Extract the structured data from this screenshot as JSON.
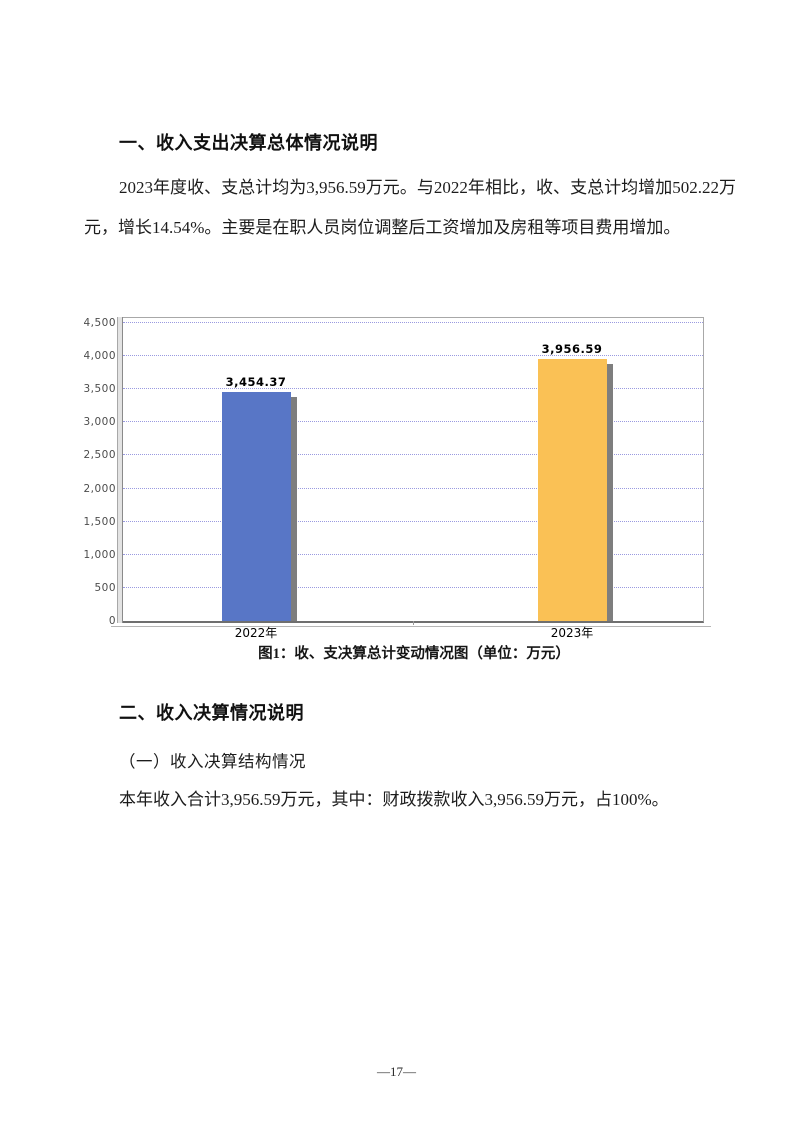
{
  "document": {
    "section1_heading": "一、收入支出决算总体情况说明",
    "paragraph1": "2023年度收、支总计均为3,956.59万元。与2022年相比，收、支总计均增加502.22万元，增长14.54%。主要是在职人员岗位调整后工资增加及房租等项目费用增加。",
    "section2_heading": "二、收入决算情况说明",
    "subsection_heading": "（一）收入决算结构情况",
    "paragraph2": "本年收入合计3,956.59万元，其中：财政拨款收入3,956.59万元，占100%。",
    "page_number": "—17—"
  },
  "chart_data": {
    "type": "bar",
    "title": "图1：收、支决算总计变动情况图（单位：万元）",
    "unit": "万元",
    "categories": [
      "2022年",
      "2023年"
    ],
    "values": [
      3454.37,
      3956.59
    ],
    "value_labels": [
      "3,454.37",
      "3,956.59"
    ],
    "bar_colors": [
      "#5876c6",
      "#fac155"
    ],
    "shadow_color": "#7e7e7e",
    "gridline_color": "#9a9ae0",
    "ylim": [
      0,
      4500
    ],
    "ytick_interval": 500,
    "ytick_labels": [
      "0",
      "500",
      "1,000",
      "1,500",
      "2,000",
      "2,500",
      "3,000",
      "3,500",
      "4,000",
      "4,500"
    ],
    "grid": true,
    "legend": "none",
    "style": "3d-shadow-bars"
  }
}
